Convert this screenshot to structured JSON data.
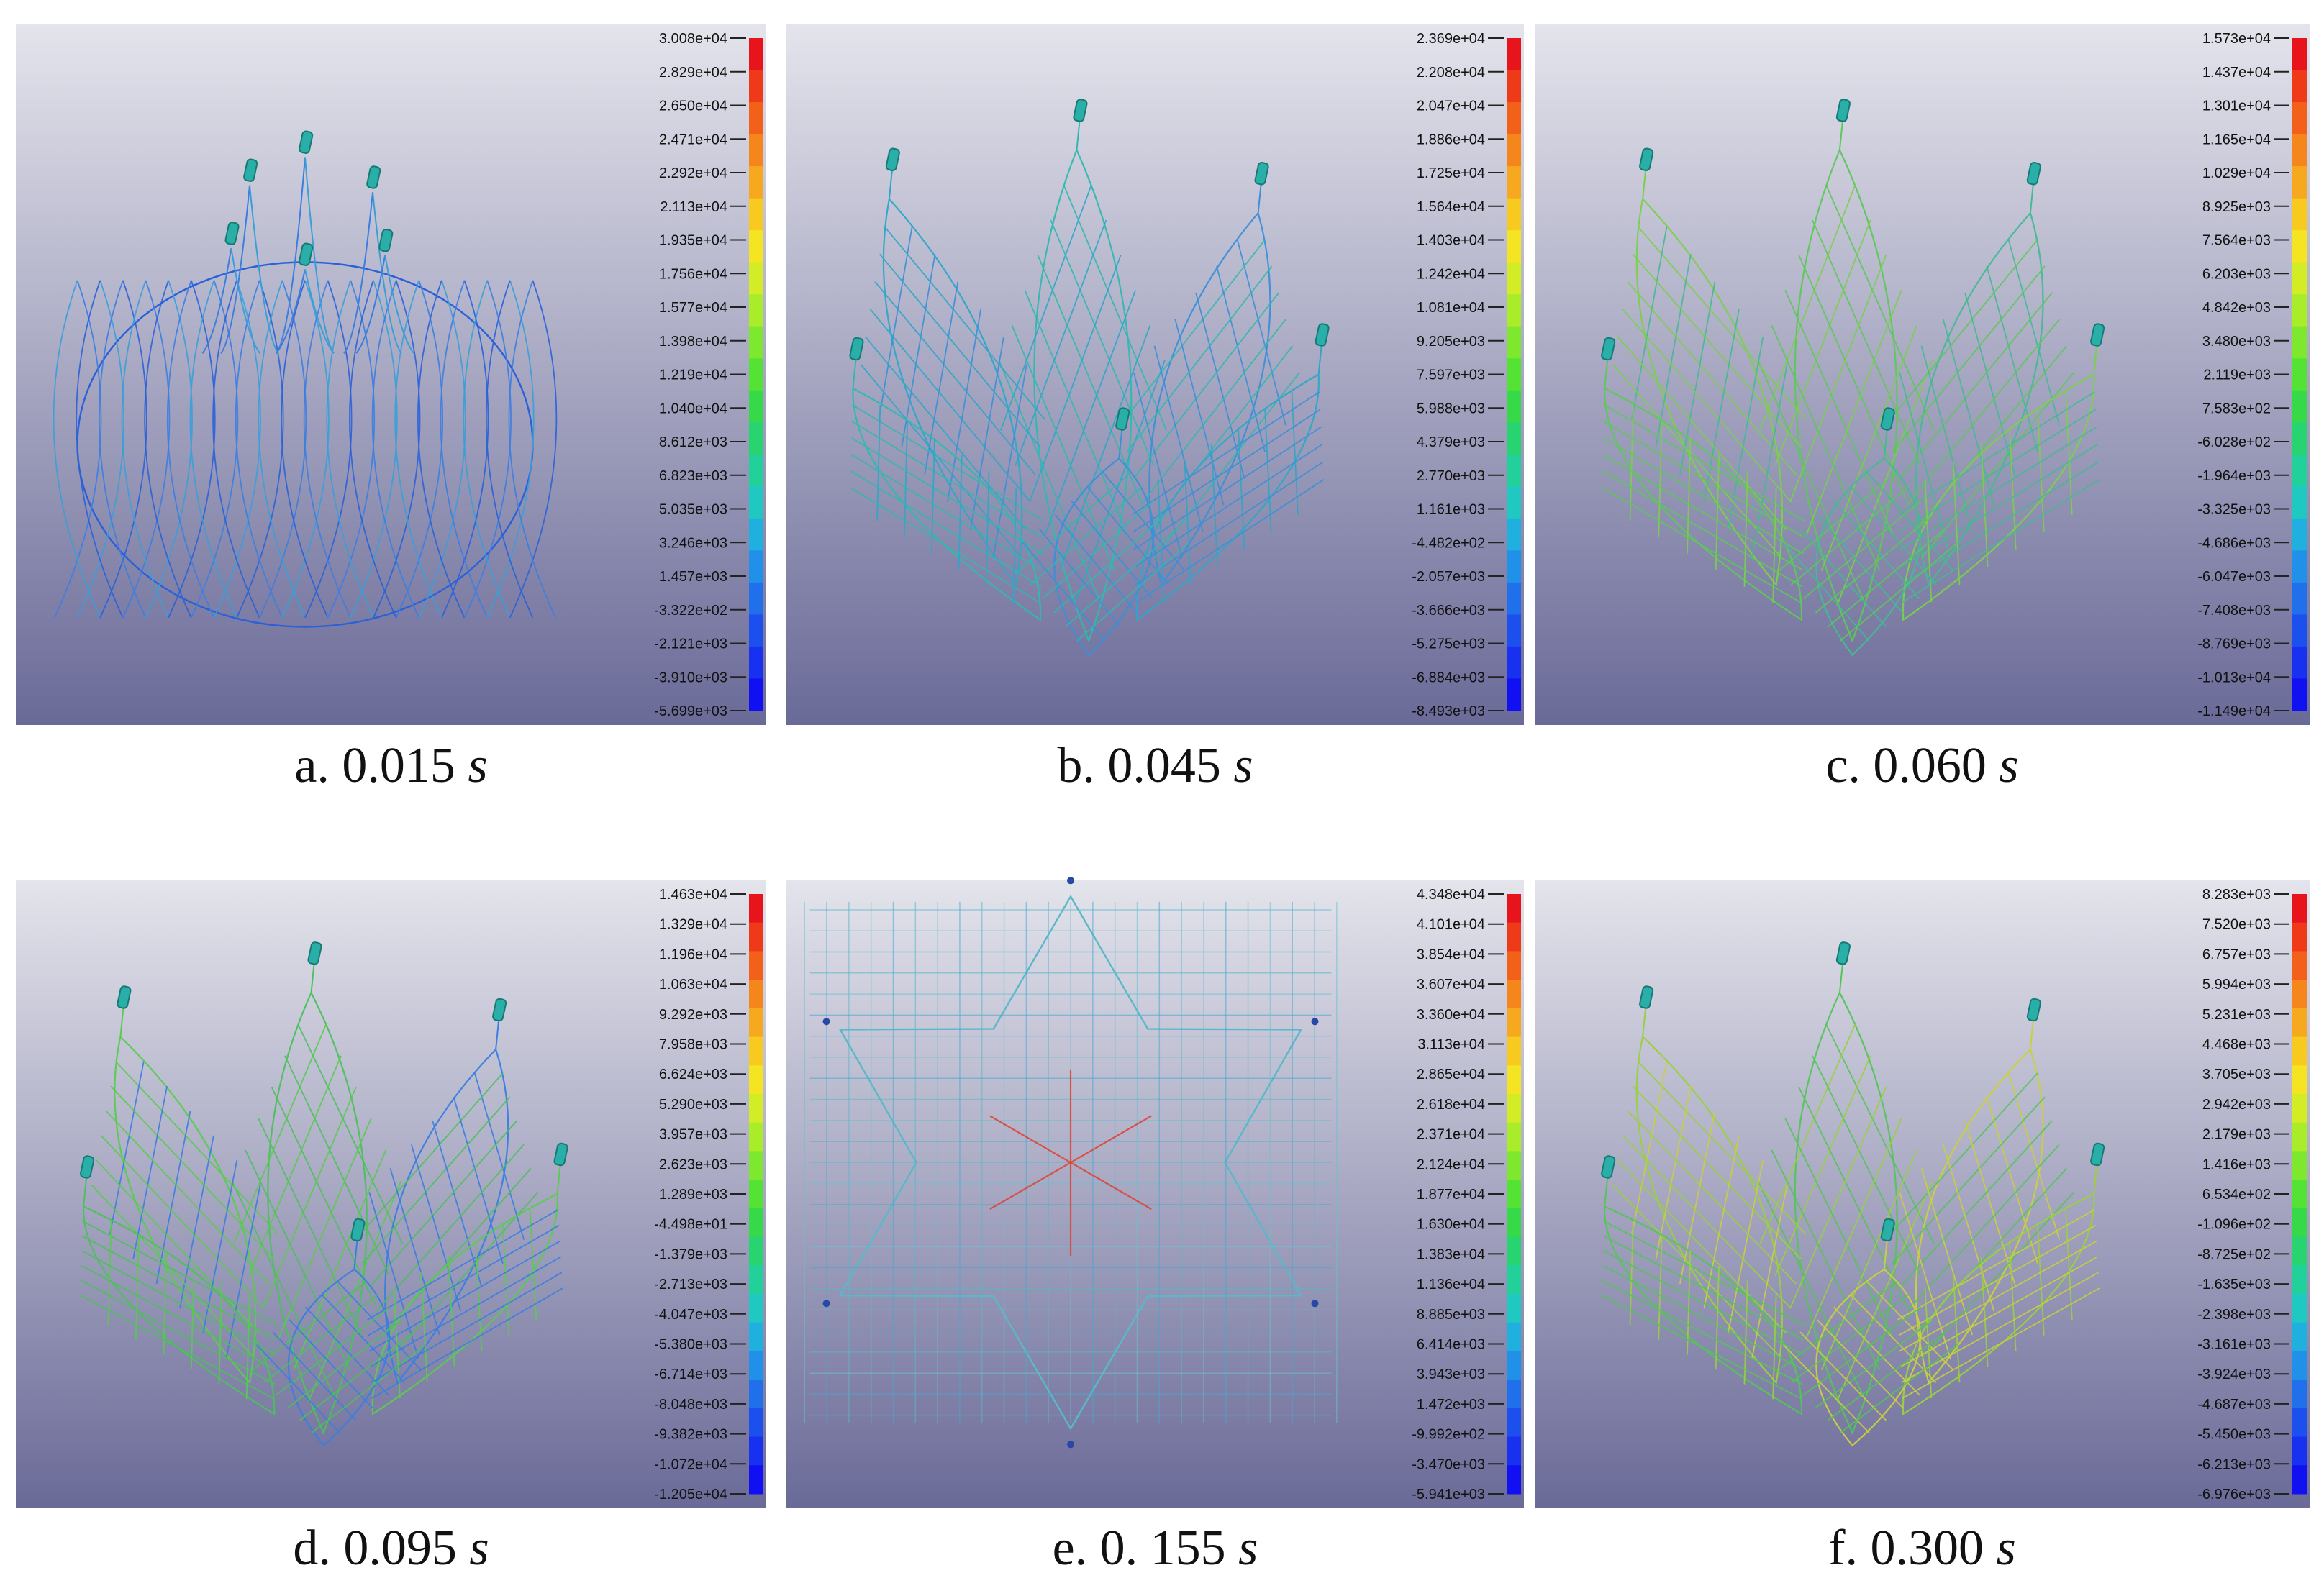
{
  "figure": {
    "panels": [
      {
        "id": "a",
        "caption_prefix": "a. 0.015 ",
        "caption_unit": "s",
        "shape": "basket",
        "mesh_colors": [
          "#2a60d8",
          "#3c7de0",
          "#3a9ed8"
        ],
        "center_color": null,
        "legend_ticks": [
          "3.008e+04",
          "2.829e+04",
          "2.650e+04",
          "2.471e+04",
          "2.292e+04",
          "2.113e+04",
          "1.935e+04",
          "1.756e+04",
          "1.577e+04",
          "1.398e+04",
          "1.219e+04",
          "1.040e+04",
          "8.612e+03",
          "6.823e+03",
          "5.035e+03",
          "3.246e+03",
          "1.457e+03",
          "-3.322e+02",
          "-2.121e+03",
          "-3.910e+03",
          "-5.699e+03"
        ]
      },
      {
        "id": "b",
        "caption_prefix": "b. 0.045 ",
        "caption_unit": "s",
        "shape": "flower",
        "mesh_colors": [
          "#32b8b0",
          "#2fa6c8",
          "#3c8fd8"
        ],
        "center_color": null,
        "legend_ticks": [
          "2.369e+04",
          "2.208e+04",
          "2.047e+04",
          "1.886e+04",
          "1.725e+04",
          "1.564e+04",
          "1.403e+04",
          "1.242e+04",
          "1.081e+04",
          "9.205e+03",
          "7.597e+03",
          "5.988e+03",
          "4.379e+03",
          "2.770e+03",
          "1.161e+03",
          "-4.482e+02",
          "-2.057e+03",
          "-3.666e+03",
          "-5.275e+03",
          "-6.884e+03",
          "-8.493e+03"
        ]
      },
      {
        "id": "c",
        "caption_prefix": "c. 0.060 ",
        "caption_unit": "s",
        "shape": "flower",
        "mesh_colors": [
          "#5cc85a",
          "#7ad04c",
          "#46b894"
        ],
        "center_color": null,
        "legend_ticks": [
          "1.573e+04",
          "1.437e+04",
          "1.301e+04",
          "1.165e+04",
          "1.029e+04",
          "8.925e+03",
          "7.564e+03",
          "6.203e+03",
          "4.842e+03",
          "3.480e+03",
          "2.119e+03",
          "7.583e+02",
          "-6.028e+02",
          "-1.964e+03",
          "-3.325e+03",
          "-4.686e+03",
          "-6.047e+03",
          "-7.408e+03",
          "-8.769e+03",
          "-1.013e+04",
          "-1.149e+04"
        ]
      },
      {
        "id": "d",
        "caption_prefix": "d. 0.095 ",
        "caption_unit": "s",
        "shape": "flower",
        "mesh_colors": [
          "#4cc05c",
          "#5acb50",
          "#3a7ee0"
        ],
        "center_color": null,
        "legend_ticks": [
          "1.463e+04",
          "1.329e+04",
          "1.196e+04",
          "1.063e+04",
          "9.292e+03",
          "7.958e+03",
          "6.624e+03",
          "5.290e+03",
          "3.957e+03",
          "2.623e+03",
          "1.289e+03",
          "-4.498e+01",
          "-1.379e+03",
          "-2.713e+03",
          "-4.047e+03",
          "-5.380e+03",
          "-6.714e+03",
          "-8.048e+03",
          "-9.382e+03",
          "-1.072e+04",
          "-1.205e+04"
        ]
      },
      {
        "id": "e",
        "caption_prefix": "e. 0. 155 ",
        "caption_unit": "s",
        "shape": "star",
        "mesh_colors": [
          "#5ab8c8",
          "#6cc0d0",
          "#48a8d0"
        ],
        "center_color": "#e04030",
        "legend_ticks": [
          "4.348e+04",
          "4.101e+04",
          "3.854e+04",
          "3.607e+04",
          "3.360e+04",
          "3.113e+04",
          "2.865e+04",
          "2.618e+04",
          "2.371e+04",
          "2.124e+04",
          "1.877e+04",
          "1.630e+04",
          "1.383e+04",
          "1.136e+04",
          "8.885e+03",
          "6.414e+03",
          "3.943e+03",
          "1.472e+03",
          "-9.992e+02",
          "-3.470e+03",
          "-5.941e+03"
        ]
      },
      {
        "id": "f",
        "caption_prefix": "f. 0.300 ",
        "caption_unit": "s",
        "shape": "flower",
        "mesh_colors": [
          "#54c45a",
          "#9ad040",
          "#c8d040"
        ],
        "center_color": null,
        "legend_ticks": [
          "8.283e+03",
          "7.520e+03",
          "6.757e+03",
          "5.994e+03",
          "5.231e+03",
          "4.468e+03",
          "3.705e+03",
          "2.942e+03",
          "2.179e+03",
          "1.416e+03",
          "6.534e+02",
          "-1.096e+02",
          "-8.725e+02",
          "-1.635e+03",
          "-2.398e+03",
          "-3.161e+03",
          "-3.924e+03",
          "-4.687e+03",
          "-5.450e+03",
          "-6.213e+03",
          "-6.976e+03"
        ]
      }
    ],
    "colorbar": [
      "#e8141c",
      "#ee3a18",
      "#f2601a",
      "#f4861c",
      "#f6a81e",
      "#f8ca20",
      "#f4e422",
      "#d2ec26",
      "#a8ec2a",
      "#7ee82e",
      "#54e234",
      "#36da48",
      "#28d470",
      "#22d09a",
      "#20c8c2",
      "#20b0e0",
      "#2090e8",
      "#2070ec",
      "#1c50ee",
      "#1830f0",
      "#1010f2"
    ],
    "background": {
      "top": "#e4e4ec",
      "bottom": "#6a6a98"
    },
    "node_color": "#2aaea8",
    "node_color_e": "#2848a8"
  }
}
